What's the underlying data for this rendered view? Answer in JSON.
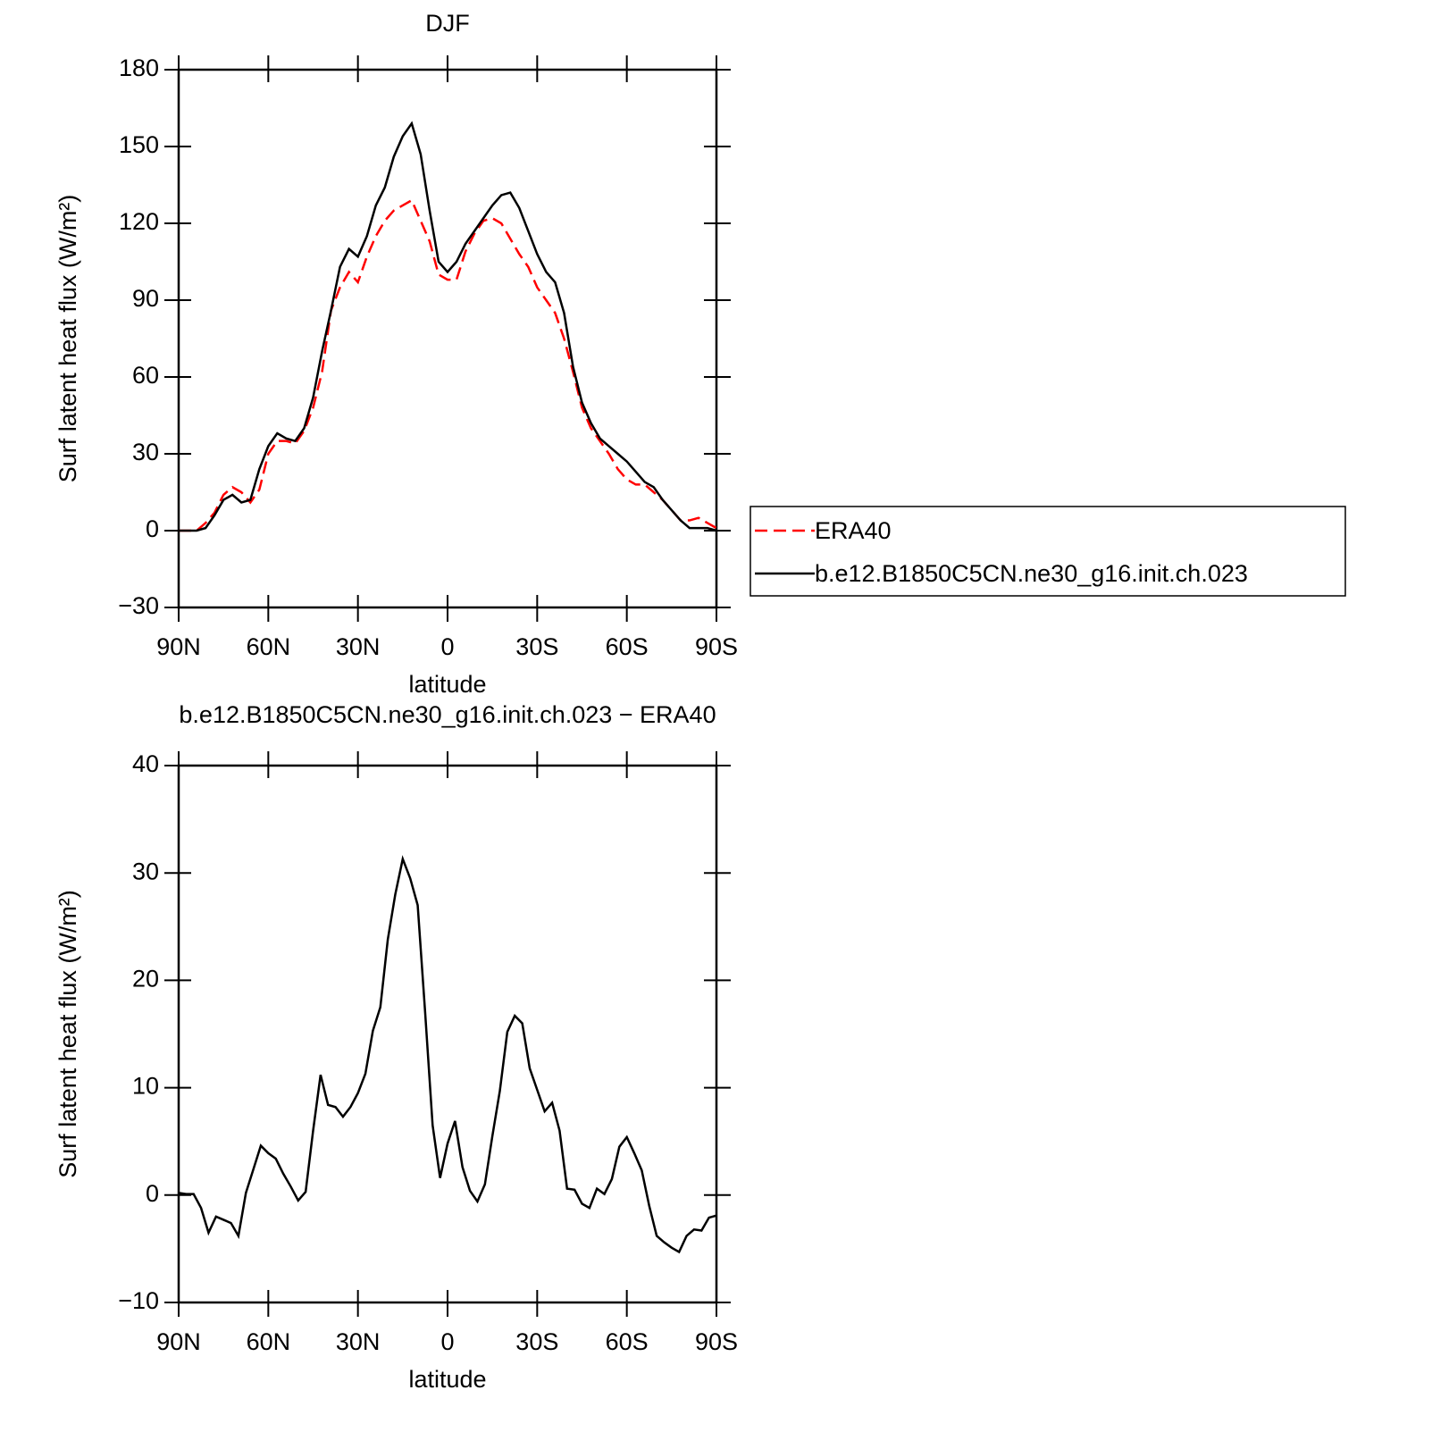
{
  "chart_data": [
    {
      "type": "line",
      "title": "DJF",
      "xlabel": "latitude",
      "ylabel": "Surf latent heat flux (W/m²)",
      "x": [
        90,
        87,
        84,
        81,
        78,
        75,
        72,
        69,
        66,
        63,
        60,
        57,
        54,
        51,
        48,
        45,
        42,
        39,
        36,
        33,
        30,
        27,
        24,
        21,
        18,
        15,
        12,
        9,
        6,
        3,
        0,
        -3,
        -6,
        -9,
        -12,
        -15,
        -18,
        -21,
        -24,
        -27,
        -30,
        -33,
        -36,
        -39,
        -42,
        -45,
        -48,
        -51,
        -54,
        -57,
        -60,
        -63,
        -66,
        -69,
        -72,
        -75,
        -78,
        -81,
        -84,
        -87,
        -90
      ],
      "series": [
        {
          "name": "ERA40",
          "color": "#ff0000",
          "dashed": true,
          "values": [
            0,
            0,
            0,
            3,
            7,
            14,
            17,
            15,
            11,
            16,
            30,
            35,
            35,
            34,
            39,
            48,
            62,
            86,
            95,
            101,
            97,
            107,
            115,
            121,
            125,
            127,
            129,
            121,
            113,
            100,
            98,
            98,
            109,
            116,
            121,
            122,
            120,
            114,
            108,
            103,
            95,
            90,
            85,
            75,
            62,
            48,
            40,
            35,
            30,
            24,
            20,
            18,
            18,
            15,
            12,
            8,
            4,
            4,
            5,
            3,
            1
          ]
        },
        {
          "name": "b.e12.B1850C5CN.ne30_g16.init.ch.023",
          "color": "#000000",
          "dashed": false,
          "values": [
            0,
            0,
            0,
            1,
            6,
            12,
            14,
            11,
            12,
            24,
            33,
            38,
            36,
            35,
            40,
            52,
            70,
            86,
            103,
            110,
            107,
            115,
            127,
            134,
            146,
            154,
            159,
            147,
            125,
            105,
            101,
            105,
            112,
            117,
            122,
            127,
            131,
            132,
            126,
            117,
            108,
            101,
            97,
            85,
            64,
            50,
            42,
            36,
            33,
            30,
            27,
            23,
            19,
            17,
            12,
            8,
            4,
            1,
            1,
            1,
            0
          ]
        }
      ],
      "xlim": [
        90,
        -90
      ],
      "xticks": [
        {
          "value": 90,
          "label": "90N"
        },
        {
          "value": 60,
          "label": "60N"
        },
        {
          "value": 30,
          "label": "30N"
        },
        0,
        {
          "value": -30,
          "label": "30S"
        },
        {
          "value": -60,
          "label": "60S"
        },
        {
          "value": -90,
          "label": "90S"
        }
      ],
      "ylim": [
        -30,
        180
      ],
      "yticks": [
        {
          "value": -30,
          "label": "−30"
        },
        0,
        30,
        60,
        90,
        120,
        150,
        180
      ],
      "legend": "right"
    },
    {
      "type": "line",
      "title": "b.e12.B1850C5CN.ne30_g16.init.ch.023 − ERA40",
      "xlabel": "latitude",
      "ylabel": "Surf latent heat flux (W/m²)",
      "x": [
        90,
        87.5,
        85,
        82.5,
        80,
        77.5,
        75,
        72.5,
        70,
        67.5,
        65,
        62.5,
        60,
        57.5,
        55,
        52.5,
        50,
        47.5,
        45,
        42.5,
        40,
        37.5,
        35,
        32.5,
        30,
        27.5,
        25,
        22.5,
        20,
        17.5,
        15,
        12.5,
        10,
        7.5,
        5,
        2.5,
        0,
        -2.5,
        -5,
        -7.5,
        -10,
        -12.5,
        -15,
        -17.5,
        -20,
        -22.5,
        -25,
        -27.5,
        -30,
        -32.5,
        -35,
        -37.5,
        -40,
        -42.5,
        -45,
        -47.5,
        -50,
        -52.5,
        -55,
        -57.5,
        -60,
        -62.5,
        -65,
        -67.5,
        -70,
        -72.5,
        -75,
        -77.5,
        -80,
        -82.5,
        -85,
        -87.5,
        -90
      ],
      "series": [
        {
          "color": "#000000",
          "dashed": false,
          "values": [
            0.2,
            0.1,
            0.1,
            -1.2,
            -3.5,
            -2,
            -2.3,
            -2.6,
            -3.8,
            0.2,
            2.4,
            4.6,
            3.9,
            3.4,
            2,
            0.8,
            -0.5,
            0.3,
            6,
            11.2,
            8.4,
            8.2,
            7.3,
            8.2,
            9.5,
            11.3,
            15.3,
            17.5,
            23.8,
            28,
            31.3,
            29.5,
            27,
            17,
            6.5,
            1.6,
            4.8,
            6.9,
            2.6,
            0.4,
            -0.6,
            1,
            5.5,
            9.7,
            15.2,
            16.7,
            16,
            11.8,
            9.8,
            7.8,
            8.6,
            6,
            0.6,
            0.5,
            -0.8,
            -1.2,
            0.6,
            0.1,
            1.5,
            4.5,
            5.4,
            3.9,
            2.3,
            -1,
            -3.8,
            -4.4,
            -4.9,
            -5.3,
            -3.8,
            -3.2,
            -3.3,
            -2.1,
            -1.9
          ]
        }
      ],
      "xlim": [
        90,
        -90
      ],
      "xticks": [
        {
          "value": 90,
          "label": "90N"
        },
        {
          "value": 60,
          "label": "60N"
        },
        {
          "value": 30,
          "label": "30N"
        },
        0,
        {
          "value": -30,
          "label": "30S"
        },
        {
          "value": -60,
          "label": "60S"
        },
        {
          "value": -90,
          "label": "90S"
        }
      ],
      "ylim": [
        -10,
        40
      ],
      "yticks": [
        {
          "value": -10,
          "label": "−10"
        },
        0,
        10,
        20,
        30,
        40
      ]
    }
  ]
}
